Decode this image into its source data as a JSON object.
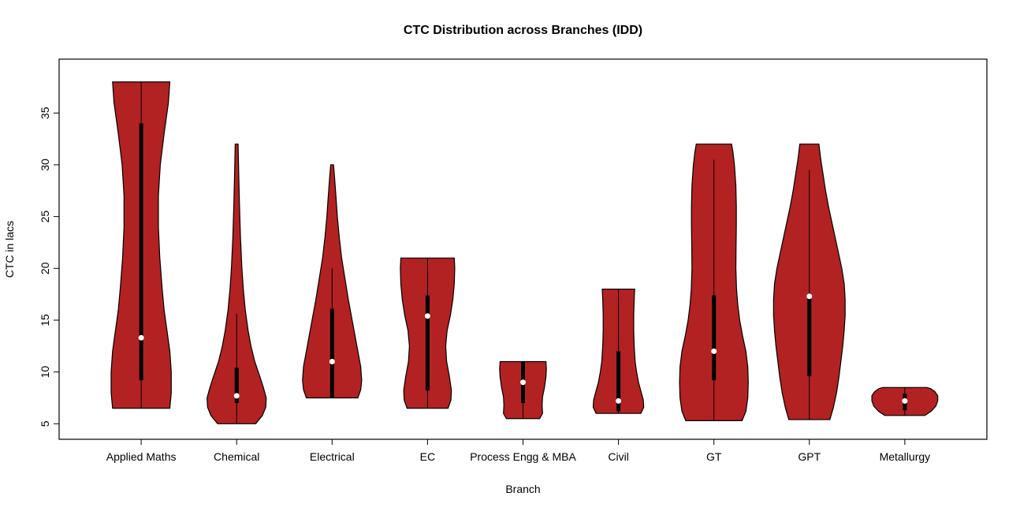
{
  "chart_data": {
    "type": "violin",
    "title": "CTC Distribution across Branches (IDD)",
    "xlabel": "Branch",
    "ylabel": "CTC in lacs",
    "categories": [
      "Applied Maths",
      "Chemical",
      "Electrical",
      "EC",
      "Process Engg & MBA",
      "Civil",
      "GT",
      "GPT",
      "Metallurgy"
    ],
    "y_ticks": [
      5,
      10,
      15,
      20,
      25,
      30,
      35
    ],
    "ylim": [
      3.5,
      40.2
    ],
    "xlim": [
      0.14,
      9.86
    ],
    "grid": false,
    "legend": "none",
    "violin_color": "#B22222",
    "outline_color": "#000000",
    "median_dot_color": "#ffffff",
    "series": [
      {
        "name": "Applied Maths",
        "min": 6.5,
        "max": 38,
        "whisker_low": 6.5,
        "whisker_high": 38,
        "q1": 9.2,
        "q3": 34,
        "median": 13.3,
        "profile": [
          [
            6.5,
            0.3
          ],
          [
            8,
            0.315
          ],
          [
            10,
            0.315
          ],
          [
            12,
            0.3
          ],
          [
            14,
            0.27
          ],
          [
            16,
            0.24
          ],
          [
            18,
            0.22
          ],
          [
            21,
            0.195
          ],
          [
            24,
            0.18
          ],
          [
            27,
            0.18
          ],
          [
            30,
            0.2
          ],
          [
            33,
            0.24
          ],
          [
            36,
            0.285
          ],
          [
            38,
            0.3
          ]
        ]
      },
      {
        "name": "Chemical",
        "min": 5,
        "max": 32,
        "whisker_low": 5,
        "whisker_high": 15.6,
        "q1": 7,
        "q3": 10.4,
        "median": 7.7,
        "profile": [
          [
            5,
            0.2
          ],
          [
            5.8,
            0.27
          ],
          [
            6.6,
            0.305
          ],
          [
            7.5,
            0.31
          ],
          [
            8.5,
            0.28
          ],
          [
            9.5,
            0.245
          ],
          [
            11,
            0.19
          ],
          [
            12.5,
            0.15
          ],
          [
            14,
            0.12
          ],
          [
            16,
            0.09
          ],
          [
            18,
            0.07
          ],
          [
            20,
            0.055
          ],
          [
            23,
            0.04
          ],
          [
            26,
            0.03
          ],
          [
            29,
            0.022
          ],
          [
            32,
            0.015
          ]
        ]
      },
      {
        "name": "Electrical",
        "min": 7.5,
        "max": 30,
        "whisker_low": 7.5,
        "whisker_high": 20,
        "q1": 7.5,
        "q3": 16.1,
        "median": 11,
        "profile": [
          [
            7.5,
            0.27
          ],
          [
            8.3,
            0.3
          ],
          [
            9.2,
            0.31
          ],
          [
            10.5,
            0.3
          ],
          [
            12,
            0.27
          ],
          [
            13.5,
            0.24
          ],
          [
            15,
            0.21
          ],
          [
            17,
            0.17
          ],
          [
            19,
            0.135
          ],
          [
            21,
            0.1
          ],
          [
            23,
            0.075
          ],
          [
            25,
            0.055
          ],
          [
            27,
            0.04
          ],
          [
            28.5,
            0.028
          ],
          [
            30,
            0.015
          ]
        ]
      },
      {
        "name": "EC",
        "min": 6.5,
        "max": 21,
        "whisker_low": 6.5,
        "whisker_high": 21,
        "q1": 8.2,
        "q3": 17.4,
        "median": 15.4,
        "profile": [
          [
            6.5,
            0.215
          ],
          [
            7.3,
            0.245
          ],
          [
            8.2,
            0.25
          ],
          [
            9.5,
            0.23
          ],
          [
            11,
            0.2
          ],
          [
            12.5,
            0.19
          ],
          [
            14,
            0.205
          ],
          [
            15.5,
            0.24
          ],
          [
            17,
            0.265
          ],
          [
            18.5,
            0.28
          ],
          [
            20,
            0.285
          ],
          [
            21,
            0.28
          ]
        ]
      },
      {
        "name": "Process Engg & MBA",
        "min": 5.5,
        "max": 11,
        "whisker_low": 5.5,
        "whisker_high": 11,
        "q1": 7,
        "q3": 11,
        "median": 9,
        "profile": [
          [
            5.5,
            0.175
          ],
          [
            6,
            0.205
          ],
          [
            6.8,
            0.2
          ],
          [
            7.6,
            0.205
          ],
          [
            8.5,
            0.225
          ],
          [
            9.5,
            0.24
          ],
          [
            10.3,
            0.245
          ],
          [
            11,
            0.24
          ]
        ]
      },
      {
        "name": "Civil",
        "min": 6,
        "max": 18,
        "whisker_low": 6,
        "whisker_high": 18,
        "q1": 6.2,
        "q3": 12,
        "median": 7.2,
        "profile": [
          [
            6,
            0.235
          ],
          [
            6.6,
            0.265
          ],
          [
            7.3,
            0.26
          ],
          [
            8,
            0.24
          ],
          [
            9,
            0.21
          ],
          [
            10,
            0.19
          ],
          [
            11,
            0.175
          ],
          [
            12.5,
            0.165
          ],
          [
            14,
            0.16
          ],
          [
            15.5,
            0.16
          ],
          [
            17,
            0.165
          ],
          [
            18,
            0.17
          ]
        ]
      },
      {
        "name": "GT",
        "min": 5.3,
        "max": 32,
        "whisker_low": 5.3,
        "whisker_high": 30.5,
        "q1": 9.2,
        "q3": 17.4,
        "median": 12,
        "profile": [
          [
            5.3,
            0.295
          ],
          [
            6.2,
            0.335
          ],
          [
            7.5,
            0.355
          ],
          [
            9,
            0.36
          ],
          [
            10.5,
            0.355
          ],
          [
            12,
            0.335
          ],
          [
            13.5,
            0.3
          ],
          [
            15,
            0.27
          ],
          [
            16.5,
            0.25
          ],
          [
            18,
            0.237
          ],
          [
            20,
            0.23
          ],
          [
            22,
            0.232
          ],
          [
            24,
            0.235
          ],
          [
            26,
            0.235
          ],
          [
            28,
            0.23
          ],
          [
            30,
            0.215
          ],
          [
            31.2,
            0.2
          ],
          [
            32,
            0.185
          ]
        ]
      },
      {
        "name": "GPT",
        "min": 5.4,
        "max": 32,
        "whisker_low": 5.4,
        "whisker_high": 29.5,
        "q1": 9.6,
        "q3": 17.5,
        "median": 17.3,
        "profile": [
          [
            5.4,
            0.215
          ],
          [
            6.5,
            0.25
          ],
          [
            8,
            0.285
          ],
          [
            9.5,
            0.31
          ],
          [
            11,
            0.33
          ],
          [
            12.5,
            0.35
          ],
          [
            14,
            0.365
          ],
          [
            15.5,
            0.375
          ],
          [
            17,
            0.375
          ],
          [
            18.5,
            0.365
          ],
          [
            20,
            0.34
          ],
          [
            21.5,
            0.305
          ],
          [
            23,
            0.27
          ],
          [
            24.5,
            0.235
          ],
          [
            26,
            0.2
          ],
          [
            27.5,
            0.17
          ],
          [
            29,
            0.145
          ],
          [
            30.5,
            0.12
          ],
          [
            32,
            0.1
          ]
        ]
      },
      {
        "name": "Metallurgy",
        "min": 5.8,
        "max": 8.5,
        "whisker_low": 5.8,
        "whisker_high": 8.5,
        "q1": 6.3,
        "q3": 7.9,
        "median": 7.2,
        "profile": [
          [
            5.8,
            0.21
          ],
          [
            6.2,
            0.275
          ],
          [
            6.7,
            0.325
          ],
          [
            7.2,
            0.345
          ],
          [
            7.7,
            0.345
          ],
          [
            8.1,
            0.315
          ],
          [
            8.4,
            0.27
          ],
          [
            8.5,
            0.23
          ]
        ]
      }
    ]
  }
}
